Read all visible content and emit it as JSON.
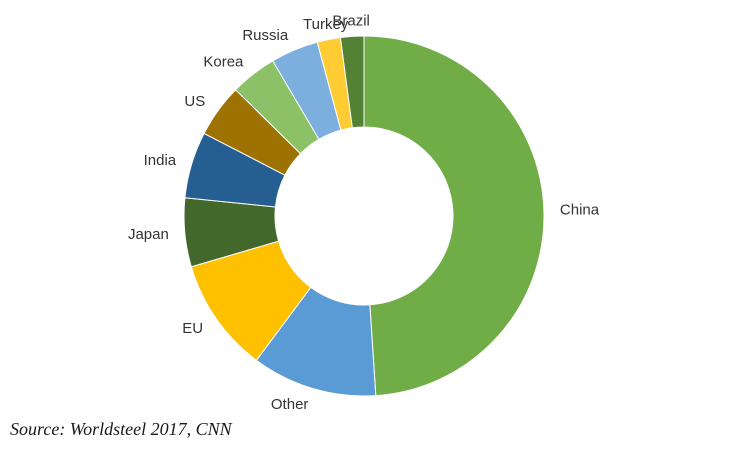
{
  "chart_data": {
    "type": "pie",
    "variant": "donut",
    "slices": [
      {
        "label": "China",
        "value": 49.2,
        "color": "#70ad47"
      },
      {
        "label": "Other",
        "value": 11.3,
        "color": "#5b9bd5"
      },
      {
        "label": "EU",
        "value": 10.3,
        "color": "#ffc000"
      },
      {
        "label": "Japan",
        "value": 6.2,
        "color": "#43682b"
      },
      {
        "label": "India",
        "value": 6.0,
        "color": "#255e91"
      },
      {
        "label": "US",
        "value": 4.8,
        "color": "#9e7200"
      },
      {
        "label": "Korea",
        "value": 4.2,
        "color": "#8cc168"
      },
      {
        "label": "Russia",
        "value": 4.3,
        "color": "#7cafdd"
      },
      {
        "label": "Turkey",
        "value": 2.1,
        "color": "#ffcd33"
      },
      {
        "label": "Brazil",
        "value": 2.1,
        "color": "#548235"
      }
    ],
    "legend": "none",
    "labels": "outside"
  },
  "source_note": "Source: Worldsteel 2017, CNN"
}
